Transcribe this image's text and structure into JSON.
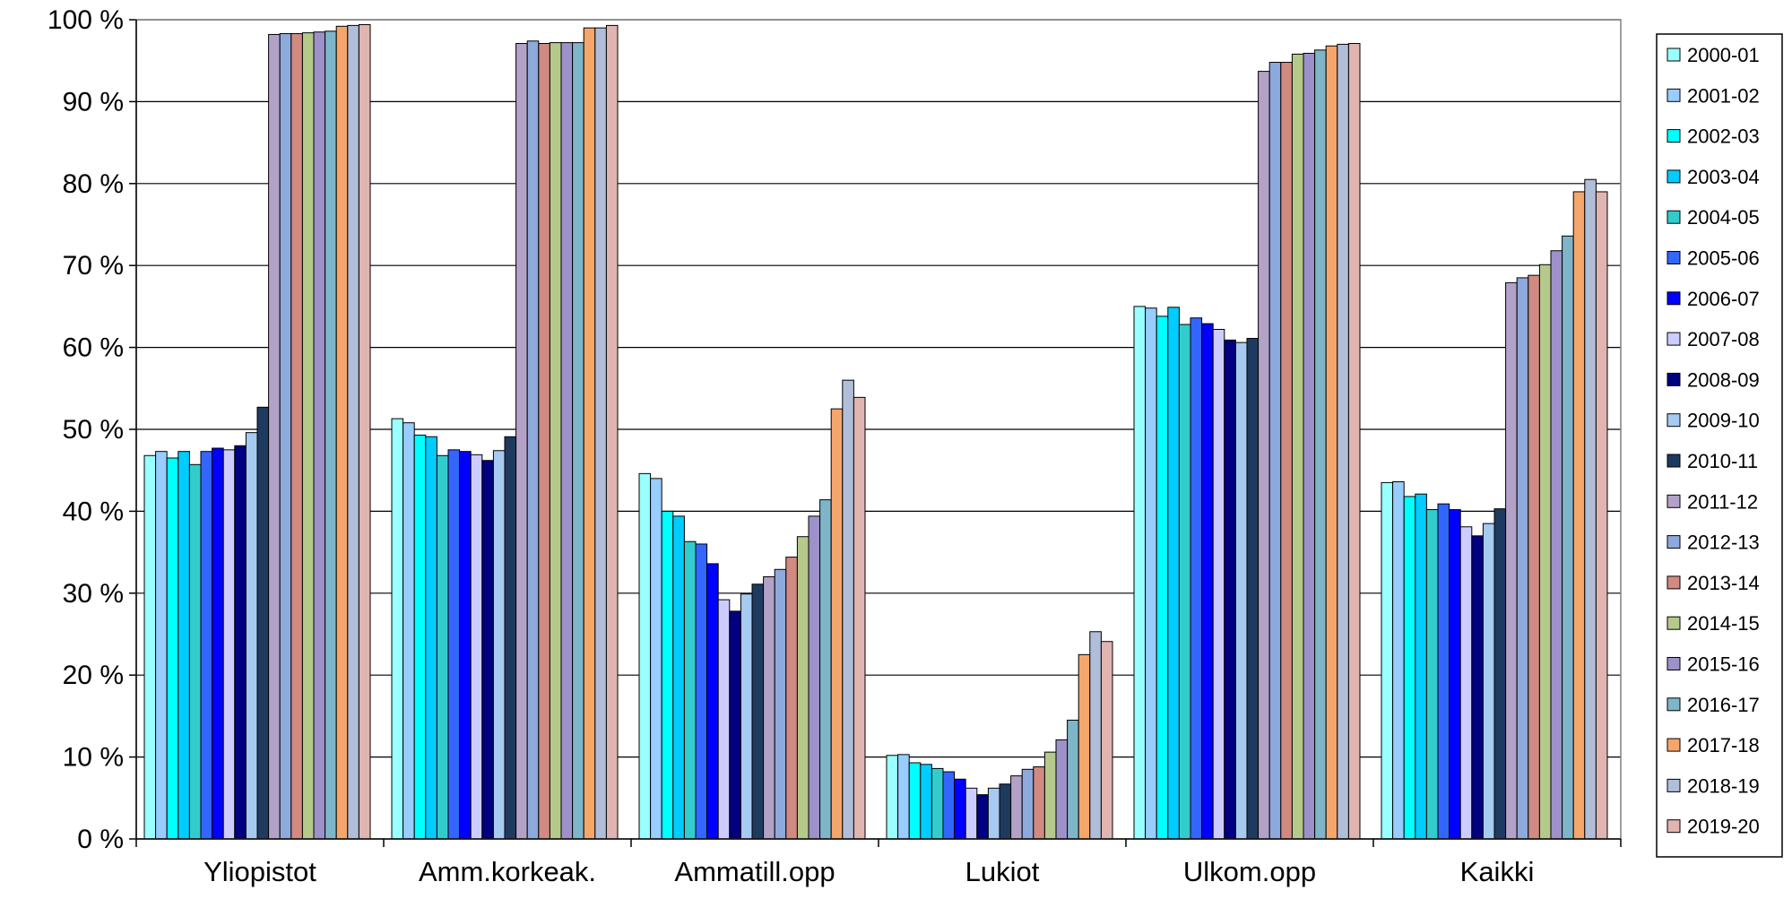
{
  "chart_data": {
    "type": "bar",
    "title": "",
    "xlabel": "",
    "ylabel": "",
    "ylim": [
      0,
      100
    ],
    "y_ticks": [
      0,
      10,
      20,
      30,
      40,
      50,
      60,
      70,
      80,
      90,
      100
    ],
    "y_tick_labels": [
      "0 %",
      "10 %",
      "20 %",
      "30 %",
      "40 %",
      "50 %",
      "60 %",
      "70 %",
      "80 %",
      "90 %",
      "100 %"
    ],
    "grid": "horizontal",
    "legend": "right",
    "categories": [
      "Yliopistot",
      "Amm.korkeak.",
      "Ammatill.opp",
      "Lukiot",
      "Ulkom.opp",
      "Kaikki"
    ],
    "series": [
      {
        "name": "2000-01",
        "color": "#99FFFF",
        "values": [
          46.8,
          51.3,
          44.6,
          10.2,
          65.0,
          43.5
        ]
      },
      {
        "name": "2001-02",
        "color": "#99CCFF",
        "values": [
          47.3,
          50.8,
          44.0,
          10.3,
          64.8,
          43.6
        ]
      },
      {
        "name": "2002-03",
        "color": "#00FFFF",
        "values": [
          46.5,
          49.3,
          40.0,
          9.3,
          63.8,
          41.8
        ]
      },
      {
        "name": "2003-04",
        "color": "#00CCFF",
        "values": [
          47.3,
          49.1,
          39.4,
          9.1,
          64.9,
          42.1
        ]
      },
      {
        "name": "2004-05",
        "color": "#33CCCC",
        "values": [
          45.7,
          46.8,
          36.3,
          8.6,
          62.8,
          40.2
        ]
      },
      {
        "name": "2005-06",
        "color": "#3366FF",
        "values": [
          47.3,
          47.5,
          36.0,
          8.2,
          63.6,
          40.9
        ]
      },
      {
        "name": "2006-07",
        "color": "#0000FF",
        "values": [
          47.7,
          47.3,
          33.6,
          7.3,
          62.9,
          40.2
        ]
      },
      {
        "name": "2007-08",
        "color": "#CCCCFF",
        "values": [
          47.5,
          46.9,
          29.2,
          6.2,
          62.2,
          38.1
        ]
      },
      {
        "name": "2008-09",
        "color": "#000080",
        "values": [
          48.0,
          46.2,
          27.8,
          5.4,
          60.9,
          37.0
        ]
      },
      {
        "name": "2009-10",
        "color": "#A6CAF0",
        "values": [
          49.6,
          47.4,
          29.9,
          6.2,
          60.6,
          38.5
        ]
      },
      {
        "name": "2010-11",
        "color": "#1F3A5F",
        "values": [
          52.7,
          49.1,
          31.1,
          6.7,
          61.1,
          40.3
        ]
      },
      {
        "name": "2011-12",
        "color": "#B3A2C7",
        "values": [
          98.2,
          97.1,
          32.0,
          7.7,
          93.7,
          67.9
        ]
      },
      {
        "name": "2012-13",
        "color": "#8EA9DB",
        "values": [
          98.3,
          97.4,
          32.9,
          8.5,
          94.8,
          68.5
        ]
      },
      {
        "name": "2013-14",
        "color": "#D08A82",
        "values": [
          98.3,
          97.1,
          34.4,
          8.8,
          94.8,
          68.8
        ]
      },
      {
        "name": "2014-15",
        "color": "#B5C98A",
        "values": [
          98.4,
          97.2,
          36.9,
          10.6,
          95.8,
          70.1
        ]
      },
      {
        "name": "2015-16",
        "color": "#9D91C9",
        "values": [
          98.5,
          97.2,
          39.4,
          12.1,
          95.9,
          71.8
        ]
      },
      {
        "name": "2016-17",
        "color": "#7FB5C8",
        "values": [
          98.6,
          97.2,
          41.4,
          14.5,
          96.3,
          73.6
        ]
      },
      {
        "name": "2017-18",
        "color": "#F5A66B",
        "values": [
          99.2,
          99.0,
          52.5,
          22.5,
          96.8,
          79.0
        ]
      },
      {
        "name": "2018-19",
        "color": "#B0BED9",
        "values": [
          99.3,
          99.0,
          56.0,
          25.3,
          97.0,
          80.5
        ]
      },
      {
        "name": "2019-20",
        "color": "#E0B4B0",
        "values": [
          99.4,
          99.3,
          53.9,
          24.1,
          97.1,
          79.0
        ]
      }
    ]
  }
}
